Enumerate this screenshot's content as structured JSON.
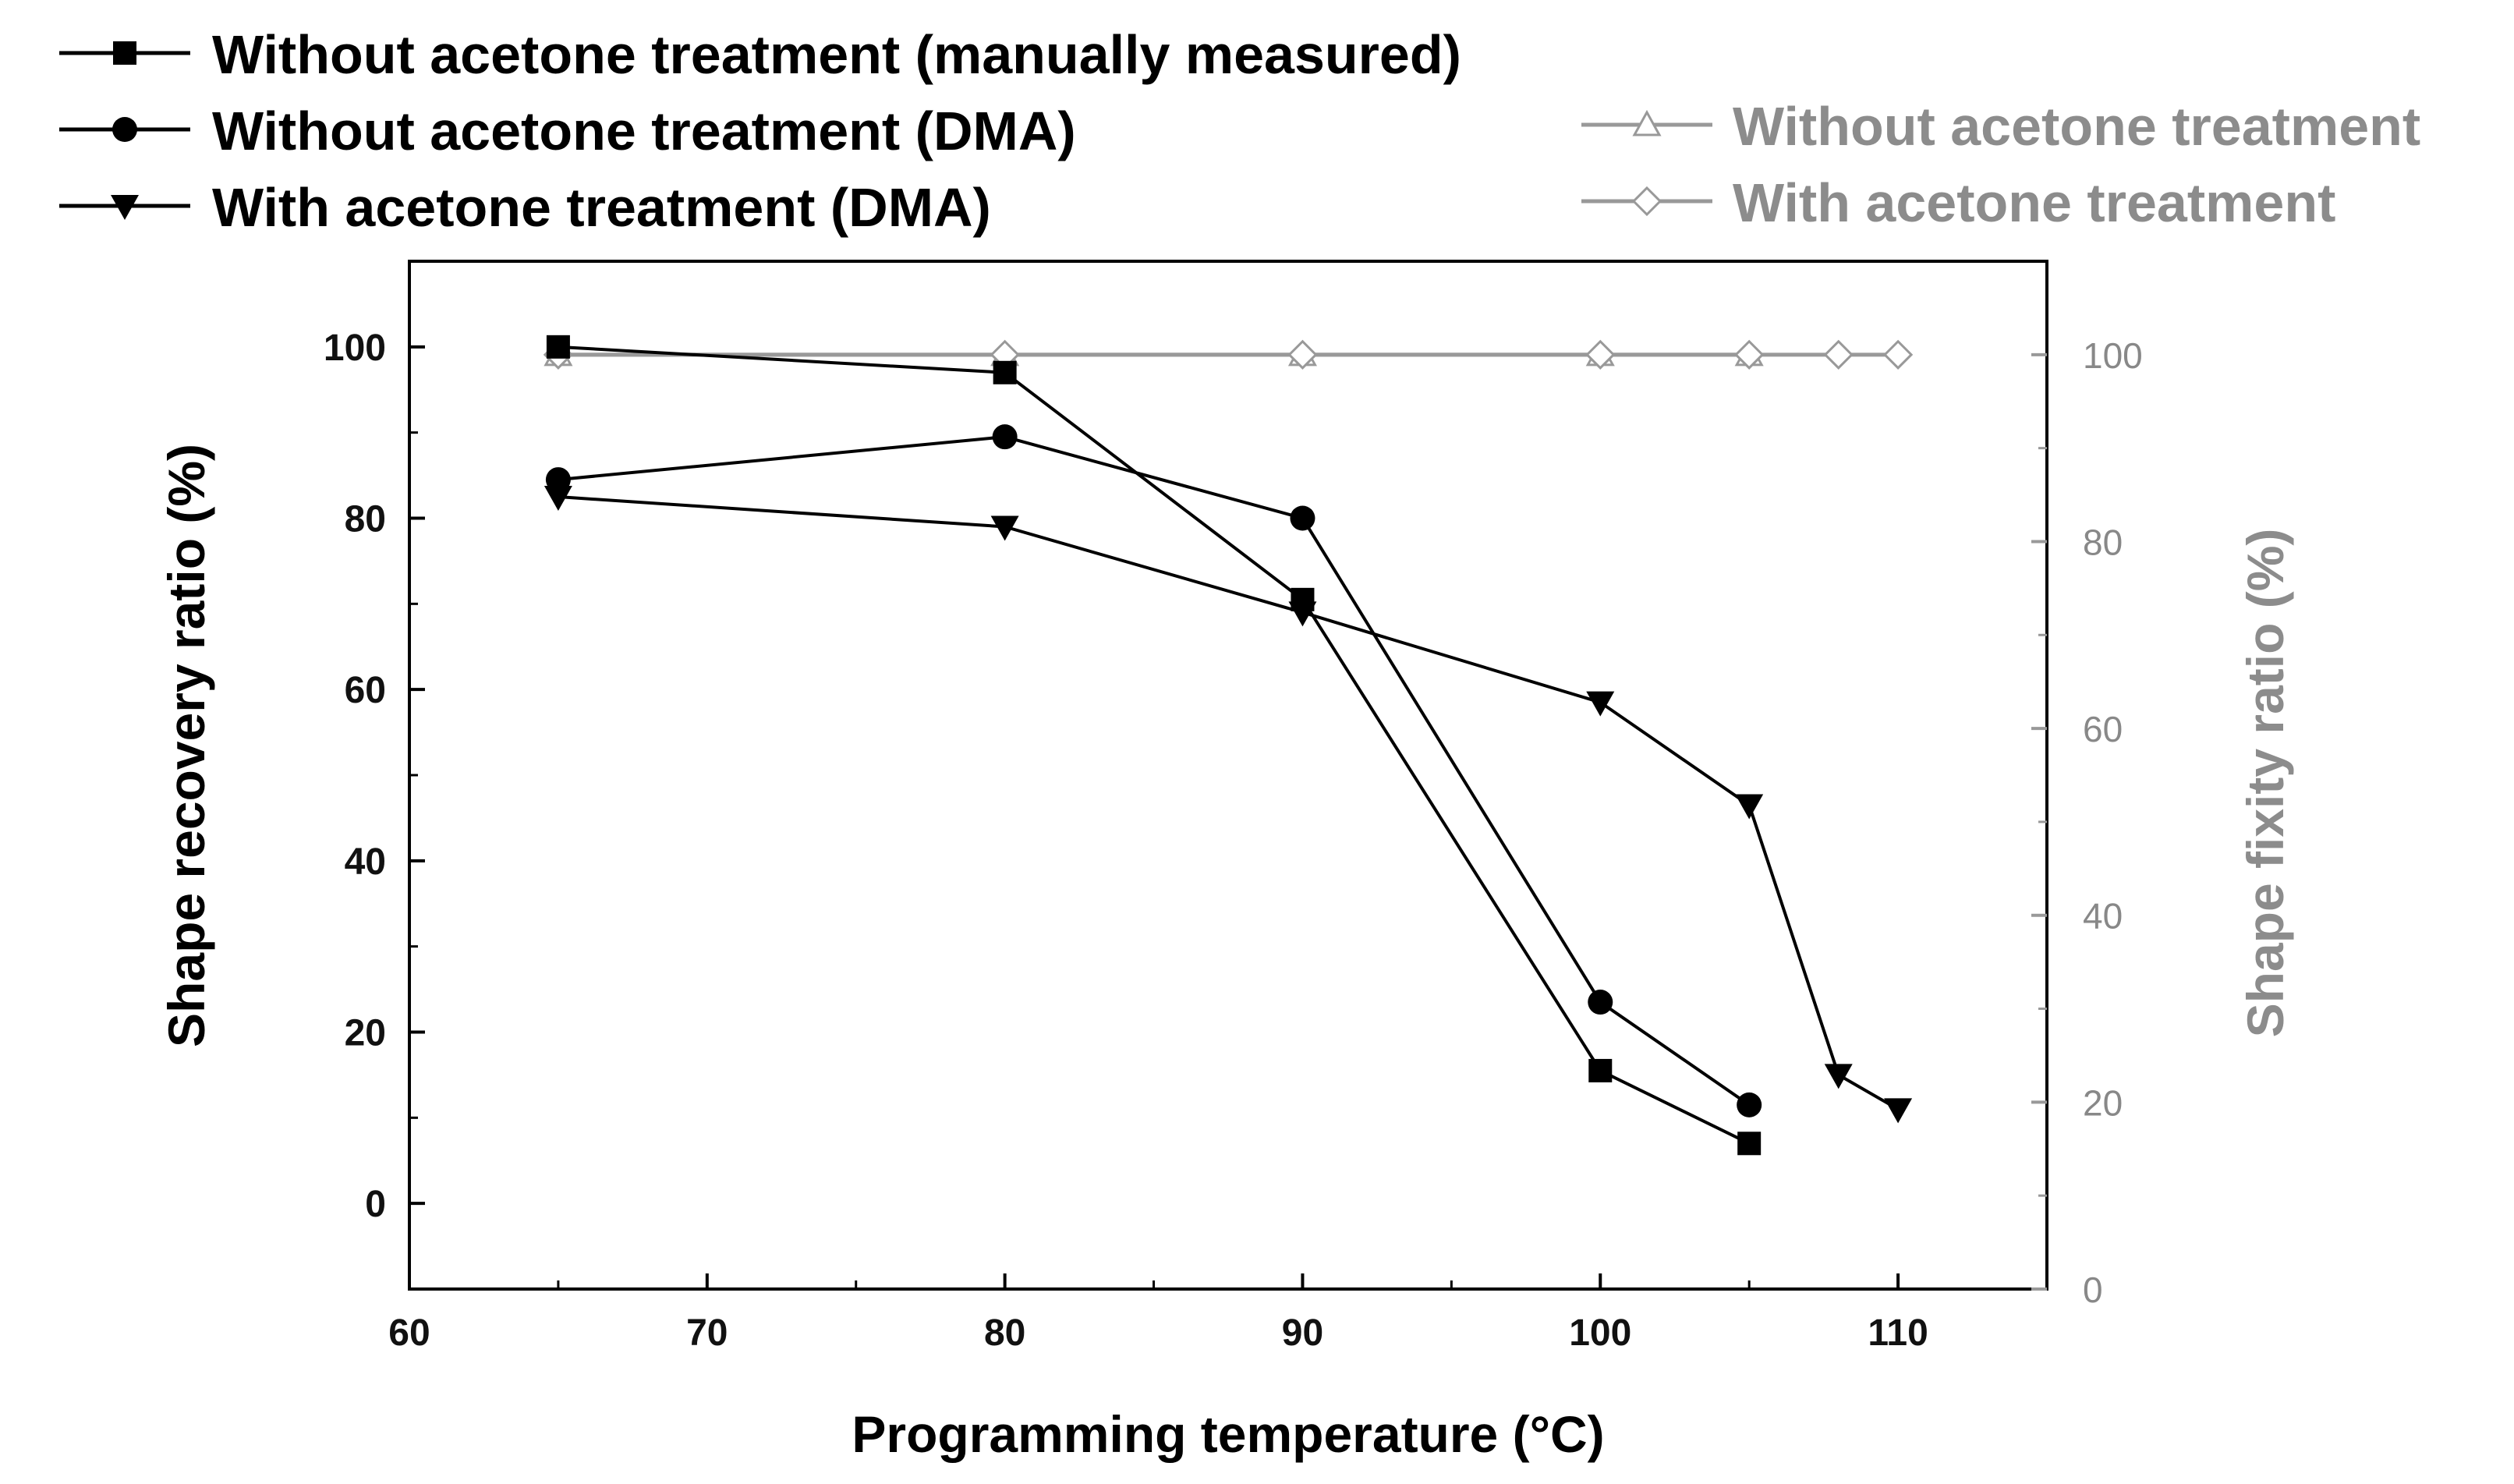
{
  "chart_data": {
    "type": "line",
    "title": "",
    "xlabel": "Programming temperature (°C)",
    "ylabel_left": "Shape recovery ratio (%)",
    "ylabel_right": "Shape fixity ratio (%)",
    "xlim": [
      60,
      115
    ],
    "ylim_left": [
      -10,
      110
    ],
    "ylim_right": [
      0,
      110
    ],
    "x_ticks": [
      60,
      70,
      80,
      90,
      100,
      110
    ],
    "y_ticks_left": [
      0,
      20,
      40,
      60,
      80,
      100
    ],
    "y_ticks_right": [
      0,
      20,
      40,
      60,
      80,
      100
    ],
    "legend_position": "top",
    "series": [
      {
        "name": "Without acetone treatment (manually measured)",
        "axis": "left",
        "marker": "square",
        "color": "#000000",
        "x": [
          65,
          80,
          90,
          100,
          105
        ],
        "y": [
          100,
          97,
          70.5,
          15.5,
          7
        ]
      },
      {
        "name": "Without acetone treatment (DMA)",
        "axis": "left",
        "marker": "circle",
        "color": "#000000",
        "x": [
          65,
          80,
          90,
          100,
          105
        ],
        "y": [
          84.5,
          89.5,
          80,
          23.5,
          11.5
        ]
      },
      {
        "name": "With acetone treatment (DMA)",
        "axis": "left",
        "marker": "triangle-down",
        "color": "#000000",
        "x": [
          65,
          80,
          90,
          100,
          105,
          108,
          110
        ],
        "y": [
          82.5,
          79,
          69,
          58.5,
          46.5,
          15,
          11
        ]
      },
      {
        "name": "Without acetone treatment",
        "axis": "right",
        "marker": "triangle-up-open",
        "color": "#999999",
        "x": [
          65,
          80,
          90,
          100,
          105
        ],
        "y": [
          100,
          100,
          100,
          100,
          100
        ]
      },
      {
        "name": "With acetone treatment",
        "axis": "right",
        "marker": "diamond-open",
        "color": "#999999",
        "x": [
          65,
          80,
          90,
          100,
          105,
          108,
          110
        ],
        "y": [
          100,
          100,
          100,
          100,
          100,
          100,
          100
        ]
      }
    ]
  }
}
